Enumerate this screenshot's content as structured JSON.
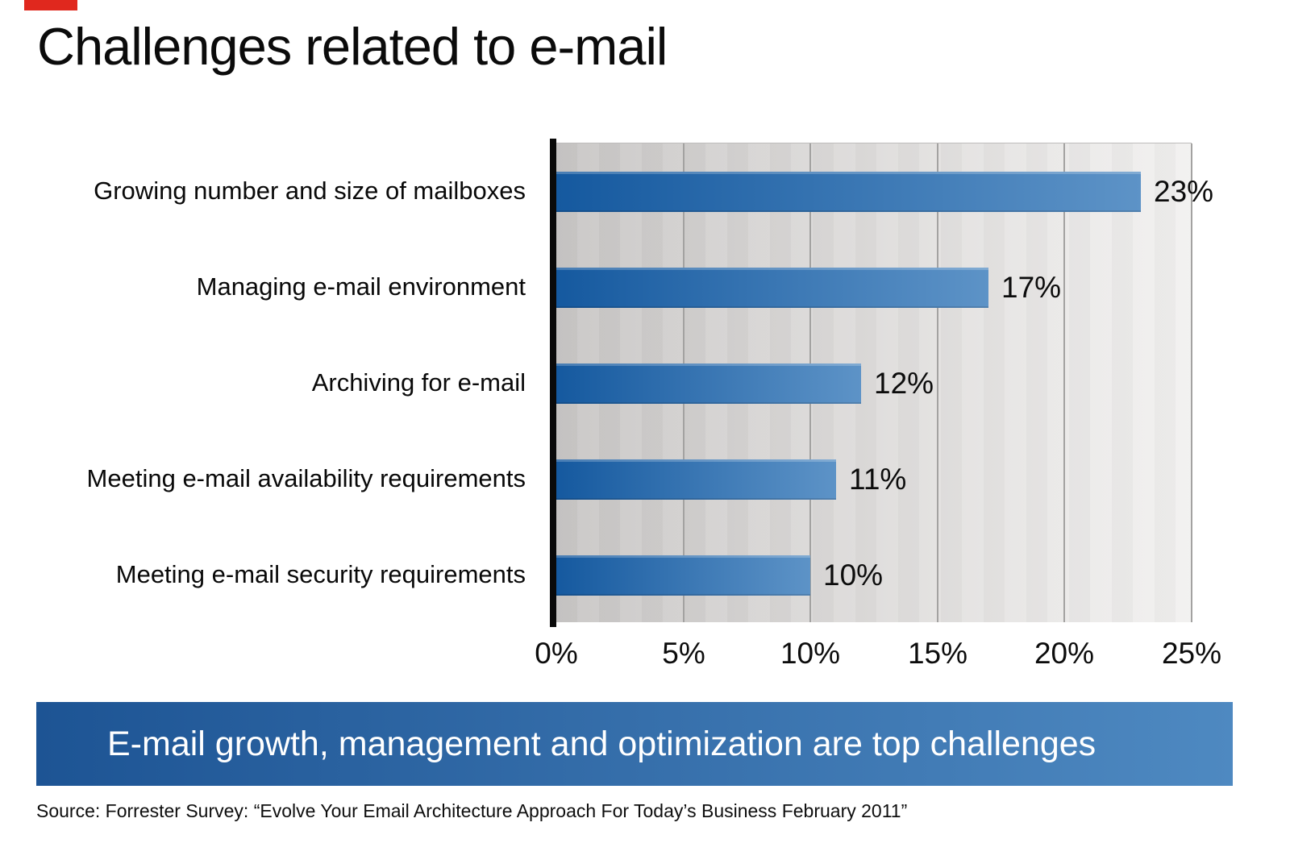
{
  "slide": {
    "title": "Challenges related to e-mail",
    "accent_marker_color": "#e0281e",
    "banner": {
      "text": "E-mail growth, management and optimization are top challenges",
      "bg_gradient_left": "#1d5494",
      "bg_gradient_right": "#4e89c1",
      "text_color": "#ffffff"
    },
    "source_note": "Source: Forrester Survey: “Evolve Your Email Architecture Approach For Today’s Business February 2011”"
  },
  "chart_data": {
    "type": "bar",
    "orientation": "horizontal",
    "title": "",
    "xlabel": "",
    "ylabel": "",
    "categories": [
      "Growing number and size of mailboxes",
      "Managing e-mail environment",
      "Archiving for e-mail",
      "Meeting e-mail availability requirements",
      "Meeting e-mail security requirements"
    ],
    "values": [
      23,
      17,
      12,
      11,
      10
    ],
    "value_labels": [
      "23%",
      "17%",
      "12%",
      "11%",
      "10%"
    ],
    "x_tick_labels": [
      "0%",
      "5%",
      "10%",
      "15%",
      "20%",
      "25%"
    ],
    "xlim": [
      0,
      25
    ],
    "grid": "vertical gridlines at 5% intervals",
    "legend": "none",
    "bar_gradient_left": "#15599f",
    "bar_gradient_right": "#5d93c7",
    "plot_bg_left": "#c9c7c6",
    "plot_bg_right": "#f2f1f0",
    "gridline_color": "#a3a2a1",
    "axis_line_color": "#0a0a0a"
  }
}
